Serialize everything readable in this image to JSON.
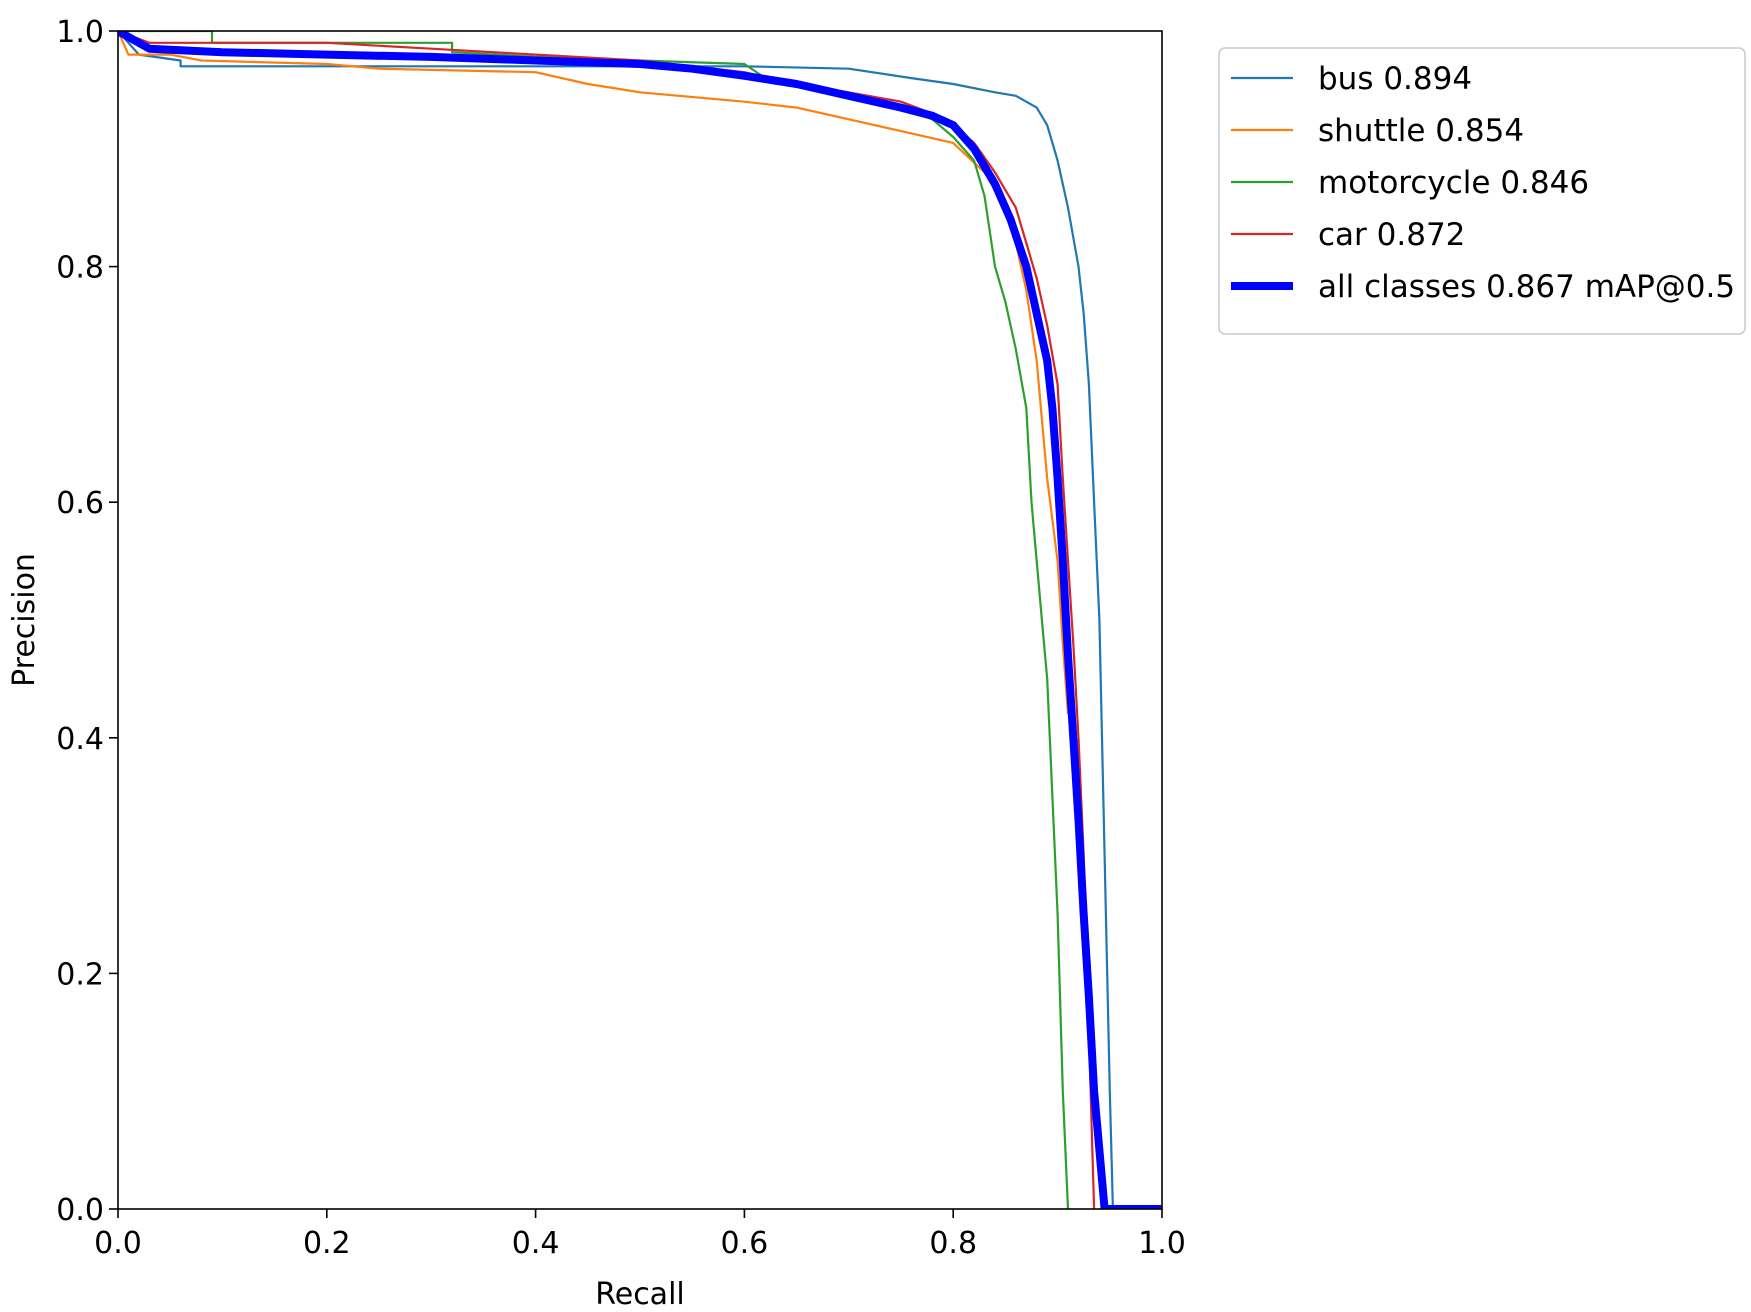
{
  "chart_data": {
    "type": "line",
    "title": "",
    "xlabel": "Recall",
    "ylabel": "Precision",
    "xlim": [
      0.0,
      1.0
    ],
    "ylim": [
      0.0,
      1.0
    ],
    "xticks": [
      "0.0",
      "0.2",
      "0.4",
      "0.6",
      "0.8",
      "1.0"
    ],
    "yticks": [
      "0.0",
      "0.2",
      "0.4",
      "0.6",
      "0.8",
      "1.0"
    ],
    "grid": false,
    "legend_position": "outside-top-right",
    "series": [
      {
        "name": "bus 0.894",
        "color": "#1f77b4",
        "emphasis": false,
        "points": [
          [
            0.0,
            1.0
          ],
          [
            0.02,
            0.98
          ],
          [
            0.06,
            0.975
          ],
          [
            0.06,
            0.97
          ],
          [
            0.12,
            0.97
          ],
          [
            0.3,
            0.97
          ],
          [
            0.4,
            0.97
          ],
          [
            0.5,
            0.97
          ],
          [
            0.6,
            0.97
          ],
          [
            0.7,
            0.968
          ],
          [
            0.76,
            0.96
          ],
          [
            0.8,
            0.955
          ],
          [
            0.84,
            0.948
          ],
          [
            0.86,
            0.945
          ],
          [
            0.88,
            0.935
          ],
          [
            0.89,
            0.92
          ],
          [
            0.9,
            0.89
          ],
          [
            0.91,
            0.85
          ],
          [
            0.92,
            0.8
          ],
          [
            0.925,
            0.76
          ],
          [
            0.93,
            0.7
          ],
          [
            0.935,
            0.6
          ],
          [
            0.94,
            0.5
          ],
          [
            0.945,
            0.3
          ],
          [
            0.95,
            0.1
          ],
          [
            0.953,
            0.0
          ],
          [
            1.0,
            0.0
          ]
        ]
      },
      {
        "name": "shuttle 0.854",
        "color": "#ff7f0e",
        "emphasis": false,
        "points": [
          [
            0.0,
            1.0
          ],
          [
            0.01,
            0.98
          ],
          [
            0.05,
            0.98
          ],
          [
            0.08,
            0.975
          ],
          [
            0.2,
            0.972
          ],
          [
            0.25,
            0.968
          ],
          [
            0.4,
            0.965
          ],
          [
            0.45,
            0.955
          ],
          [
            0.5,
            0.948
          ],
          [
            0.6,
            0.94
          ],
          [
            0.65,
            0.935
          ],
          [
            0.7,
            0.925
          ],
          [
            0.75,
            0.915
          ],
          [
            0.8,
            0.905
          ],
          [
            0.83,
            0.88
          ],
          [
            0.85,
            0.85
          ],
          [
            0.86,
            0.82
          ],
          [
            0.87,
            0.78
          ],
          [
            0.88,
            0.72
          ],
          [
            0.885,
            0.67
          ],
          [
            0.89,
            0.62
          ],
          [
            0.9,
            0.55
          ],
          [
            0.905,
            0.48
          ],
          [
            0.91,
            0.42
          ]
        ]
      },
      {
        "name": "motorcycle 0.846",
        "color": "#2ca02c",
        "emphasis": false,
        "points": [
          [
            0.0,
            1.0
          ],
          [
            0.05,
            1.0
          ],
          [
            0.09,
            1.0
          ],
          [
            0.09,
            0.99
          ],
          [
            0.2,
            0.99
          ],
          [
            0.32,
            0.99
          ],
          [
            0.32,
            0.982
          ],
          [
            0.4,
            0.978
          ],
          [
            0.5,
            0.975
          ],
          [
            0.6,
            0.972
          ],
          [
            0.62,
            0.96
          ],
          [
            0.65,
            0.955
          ],
          [
            0.7,
            0.945
          ],
          [
            0.75,
            0.935
          ],
          [
            0.78,
            0.925
          ],
          [
            0.8,
            0.91
          ],
          [
            0.82,
            0.89
          ],
          [
            0.83,
            0.86
          ],
          [
            0.84,
            0.8
          ],
          [
            0.85,
            0.77
          ],
          [
            0.86,
            0.73
          ],
          [
            0.87,
            0.68
          ],
          [
            0.875,
            0.6
          ],
          [
            0.88,
            0.55
          ],
          [
            0.885,
            0.5
          ],
          [
            0.89,
            0.45
          ],
          [
            0.895,
            0.35
          ],
          [
            0.9,
            0.25
          ],
          [
            0.905,
            0.1
          ],
          [
            0.91,
            0.0
          ]
        ]
      },
      {
        "name": "car 0.872",
        "color": "#d62728",
        "emphasis": false,
        "points": [
          [
            0.0,
            1.0
          ],
          [
            0.03,
            0.99
          ],
          [
            0.1,
            0.99
          ],
          [
            0.2,
            0.99
          ],
          [
            0.3,
            0.985
          ],
          [
            0.4,
            0.98
          ],
          [
            0.5,
            0.975
          ],
          [
            0.6,
            0.965
          ],
          [
            0.65,
            0.955
          ],
          [
            0.7,
            0.948
          ],
          [
            0.75,
            0.94
          ],
          [
            0.78,
            0.93
          ],
          [
            0.8,
            0.92
          ],
          [
            0.82,
            0.905
          ],
          [
            0.84,
            0.88
          ],
          [
            0.86,
            0.85
          ],
          [
            0.87,
            0.82
          ],
          [
            0.88,
            0.79
          ],
          [
            0.89,
            0.75
          ],
          [
            0.9,
            0.7
          ],
          [
            0.905,
            0.62
          ],
          [
            0.91,
            0.55
          ],
          [
            0.915,
            0.48
          ],
          [
            0.92,
            0.4
          ],
          [
            0.925,
            0.3
          ],
          [
            0.93,
            0.15
          ],
          [
            0.935,
            0.0
          ]
        ]
      },
      {
        "name": "all classes 0.867 mAP@0.5",
        "color": "#0000ff",
        "emphasis": true,
        "points": [
          [
            0.0,
            1.0
          ],
          [
            0.01,
            0.995
          ],
          [
            0.03,
            0.985
          ],
          [
            0.1,
            0.982
          ],
          [
            0.2,
            0.98
          ],
          [
            0.3,
            0.978
          ],
          [
            0.4,
            0.975
          ],
          [
            0.5,
            0.972
          ],
          [
            0.55,
            0.968
          ],
          [
            0.6,
            0.962
          ],
          [
            0.65,
            0.955
          ],
          [
            0.7,
            0.945
          ],
          [
            0.75,
            0.935
          ],
          [
            0.78,
            0.928
          ],
          [
            0.8,
            0.92
          ],
          [
            0.82,
            0.9
          ],
          [
            0.84,
            0.87
          ],
          [
            0.855,
            0.84
          ],
          [
            0.87,
            0.8
          ],
          [
            0.88,
            0.76
          ],
          [
            0.89,
            0.72
          ],
          [
            0.895,
            0.68
          ],
          [
            0.9,
            0.62
          ],
          [
            0.905,
            0.55
          ],
          [
            0.91,
            0.47
          ],
          [
            0.915,
            0.4
          ],
          [
            0.92,
            0.33
          ],
          [
            0.925,
            0.25
          ],
          [
            0.93,
            0.18
          ],
          [
            0.935,
            0.1
          ],
          [
            0.94,
            0.05
          ],
          [
            0.945,
            0.0
          ],
          [
            1.0,
            0.0
          ]
        ]
      }
    ]
  }
}
